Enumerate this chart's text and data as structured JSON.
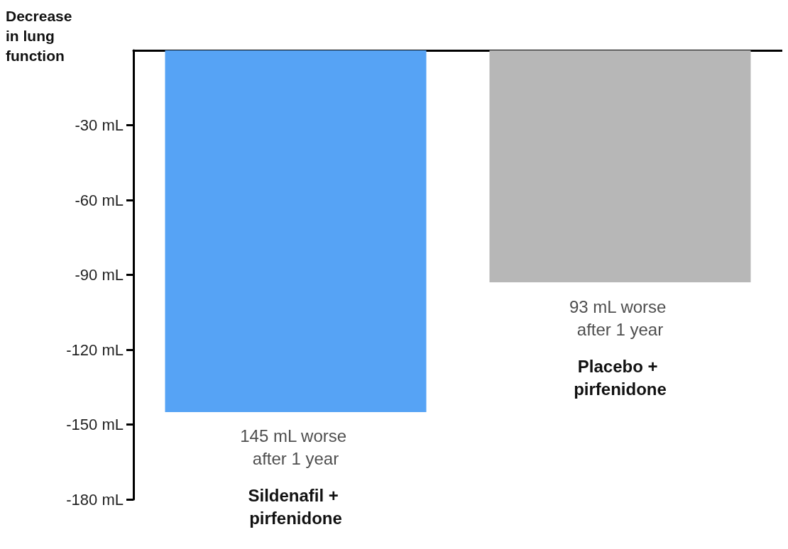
{
  "chart_data": {
    "type": "bar",
    "ylabel": "Decrease in lung function",
    "categories": [
      "Sildenafil + pirfenidone",
      "Placebo + pirfenidone"
    ],
    "values": [
      -145,
      -93
    ],
    "colors": [
      "#56a3f5",
      "#b7b7b7"
    ],
    "annotations": [
      {
        "text": "145 mL worse after 1 year",
        "x": "Sildenafil + pirfenidone",
        "y": -145
      },
      {
        "text": "93 mL worse after 1 year",
        "x": "Placebo + pirfenidone",
        "y": -93
      }
    ],
    "ylim": [
      -180,
      0
    ],
    "yticks": [
      {
        "value": -30,
        "label": "-30 mL"
      },
      {
        "value": -60,
        "label": "-60 mL"
      },
      {
        "value": -90,
        "label": "-90 mL"
      },
      {
        "value": -120,
        "label": "-120 mL"
      },
      {
        "value": -150,
        "label": "-150 mL"
      },
      {
        "value": -180,
        "label": "-180 mL"
      }
    ],
    "grid": false
  }
}
